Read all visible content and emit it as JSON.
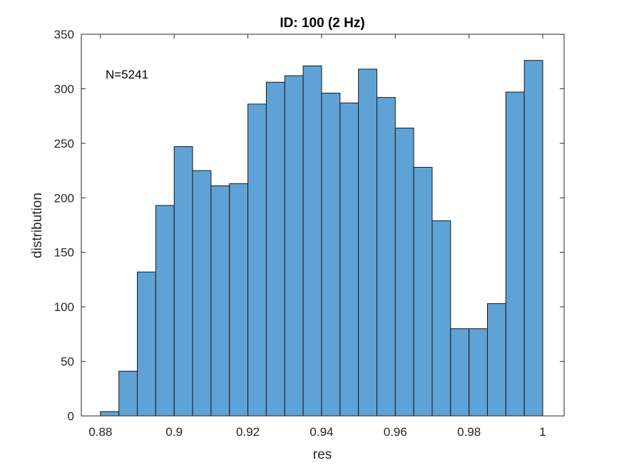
{
  "chart_data": {
    "type": "bar",
    "title": "ID: 100 (2 Hz)",
    "xlabel": "res",
    "ylabel": "distribution",
    "annotation": "N=5241",
    "bin_edges": [
      0.88,
      0.885,
      0.89,
      0.895,
      0.9,
      0.905,
      0.91,
      0.915,
      0.92,
      0.925,
      0.93,
      0.935,
      0.94,
      0.945,
      0.95,
      0.955,
      0.96,
      0.965,
      0.97,
      0.975,
      0.98,
      0.985,
      0.99,
      0.995,
      1.0
    ],
    "values": [
      4,
      41,
      132,
      193,
      247,
      225,
      211,
      213,
      286,
      306,
      312,
      321,
      296,
      287,
      318,
      292,
      264,
      228,
      179,
      80,
      80,
      103,
      297,
      326
    ],
    "xlim": [
      0.8748,
      1.0058
    ],
    "ylim": [
      0,
      350
    ],
    "xticks": [
      0.88,
      0.9,
      0.92,
      0.94,
      0.96,
      0.98,
      1.0
    ],
    "xtick_labels": [
      "0.88",
      "0.9",
      "0.92",
      "0.94",
      "0.96",
      "0.98",
      "1"
    ],
    "yticks": [
      0,
      50,
      100,
      150,
      200,
      250,
      300,
      350
    ],
    "ytick_labels": [
      "0",
      "50",
      "100",
      "150",
      "200",
      "250",
      "300",
      "350"
    ],
    "grid": false,
    "colors": {
      "bar_fill": "#5fa2d5",
      "bar_edge": "#1a1a1a",
      "axis": "#262626"
    }
  }
}
